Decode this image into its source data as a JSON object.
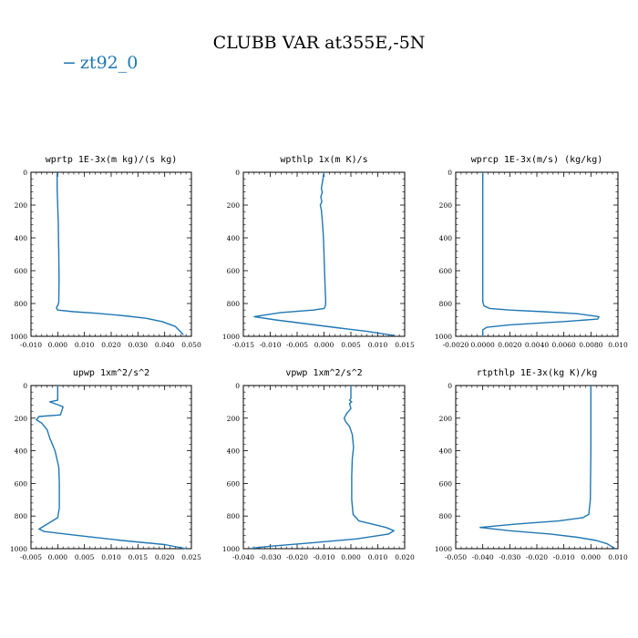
{
  "figure": {
    "title": "CLUBB VAR at355E,-5N",
    "legend": [
      {
        "label": "zt92_0",
        "marker": "−",
        "color": "#1f77b4"
      }
    ],
    "line_color": "#1f77b4"
  },
  "chart_data": [
    {
      "type": "line",
      "title": "wprtp  1E-3x(m kg)/(s kg)",
      "xlim": [
        -0.01,
        0.05
      ],
      "ylim": [
        1000,
        0
      ],
      "xticks": [
        -0.01,
        0.0,
        0.01,
        0.02,
        0.03,
        0.04,
        0.05
      ],
      "xtick_labels": [
        "-0.010",
        "0.000",
        "0.010",
        "0.020",
        "0.030",
        "0.040",
        "0.050"
      ],
      "yticks": [
        0,
        200,
        400,
        600,
        800,
        1000
      ],
      "ytick_labels": [
        "0",
        "200",
        "400",
        "600",
        "800",
        "1000"
      ],
      "series": [
        {
          "name": "zt92_0",
          "x": [
            -0.0002,
            -0.0002,
            0.0002,
            0.0004,
            0.0005,
            0.0004,
            0.0001,
            -0.0005,
            0.0,
            0.006,
            0.015,
            0.025,
            0.033,
            0.039,
            0.044,
            0.047
          ],
          "y": [
            0,
            100,
            300,
            500,
            650,
            790,
            810,
            825,
            840,
            850,
            860,
            875,
            890,
            910,
            940,
            990
          ]
        }
      ]
    },
    {
      "type": "line",
      "title": "wpthlp  1x(m K)/s",
      "xlim": [
        -0.015,
        0.015
      ],
      "ylim": [
        1000,
        0
      ],
      "xticks": [
        -0.015,
        -0.01,
        -0.005,
        0.0,
        0.005,
        0.01,
        0.015
      ],
      "xtick_labels": [
        "-0.015",
        "-0.010",
        "-0.005",
        "0.000",
        "0.005",
        "0.010",
        "0.015"
      ],
      "yticks": [
        0,
        200,
        400,
        600,
        800,
        1000
      ],
      "ytick_labels": [
        "0",
        "200",
        "400",
        "600",
        "800",
        "1000"
      ],
      "series": [
        {
          "name": "zt92_0",
          "x": [
            0.0,
            -0.0005,
            -0.0003,
            -0.0006,
            -0.0004,
            -0.0007,
            -0.0005,
            -0.0003,
            -0.0001,
            0.0,
            0.0001,
            0.0002,
            0.0003,
            0.0003,
            0.0002,
            0.0,
            -0.002,
            -0.008,
            -0.013,
            -0.009,
            -0.003,
            0.003,
            0.008,
            0.013
          ],
          "y": [
            0,
            100,
            120,
            150,
            180,
            200,
            230,
            300,
            400,
            500,
            600,
            700,
            780,
            800,
            820,
            830,
            840,
            855,
            880,
            900,
            925,
            950,
            970,
            995
          ]
        }
      ]
    },
    {
      "type": "line",
      "title": "wprcp  1E-3x(m/s) (kg/kg)",
      "xlim": [
        -0.002,
        0.01
      ],
      "ylim": [
        1000,
        0
      ],
      "xticks": [
        -0.002,
        0.0,
        0.002,
        0.004,
        0.006,
        0.008,
        0.01
      ],
      "xtick_labels": [
        "-0.0020",
        "0.0000",
        "0.0020",
        "0.0040",
        "0.0060",
        "0.0080",
        "0.010"
      ],
      "yticks": [
        0,
        200,
        400,
        600,
        800,
        1000
      ],
      "ytick_labels": [
        "0",
        "200",
        "400",
        "600",
        "800",
        "1000"
      ],
      "series": [
        {
          "name": "zt92_0",
          "x": [
            0.0,
            0.0,
            0.0,
            0.0,
            0.0001,
            0.0005,
            0.002,
            0.0045,
            0.007,
            0.0086,
            0.0085,
            0.006,
            0.002,
            0.0003,
            0.0,
            0.0
          ],
          "y": [
            0,
            200,
            500,
            790,
            815,
            830,
            840,
            850,
            862,
            880,
            895,
            910,
            930,
            945,
            960,
            1000
          ]
        }
      ]
    },
    {
      "type": "line",
      "title": "upwp  1xm^2/s^2",
      "xlim": [
        -0.005,
        0.025
      ],
      "ylim": [
        1000,
        0
      ],
      "xticks": [
        -0.005,
        0.0,
        0.005,
        0.01,
        0.015,
        0.02,
        0.025
      ],
      "xtick_labels": [
        "-0.005",
        "0.000",
        "0.005",
        "0.010",
        "0.015",
        "0.020",
        "0.025"
      ],
      "yticks": [
        0,
        200,
        400,
        600,
        800,
        1000
      ],
      "ytick_labels": [
        "0",
        "200",
        "400",
        "600",
        "800",
        "1000"
      ],
      "series": [
        {
          "name": "zt92_0",
          "x": [
            0.0,
            0.0,
            -0.0015,
            0.0002,
            0.001,
            0.0005,
            -0.0035,
            -0.004,
            -0.003,
            -0.002,
            -0.0015,
            -0.0005,
            0.0002,
            0.0003,
            0.0003,
            0.0,
            -0.002,
            -0.0035,
            -0.0025,
            0.004,
            0.012,
            0.02,
            0.024
          ],
          "y": [
            0,
            90,
            100,
            120,
            130,
            180,
            190,
            210,
            230,
            270,
            320,
            400,
            500,
            600,
            750,
            810,
            850,
            880,
            895,
            920,
            950,
            975,
            1000
          ]
        }
      ]
    },
    {
      "type": "line",
      "title": "vpwp  1xm^2/s^2",
      "xlim": [
        -0.04,
        0.02
      ],
      "ylim": [
        1000,
        0
      ],
      "xticks": [
        -0.04,
        -0.03,
        -0.02,
        -0.01,
        0.0,
        0.01,
        0.02
      ],
      "xtick_labels": [
        "-0.040",
        "-0.030",
        "-0.020",
        "-0.010",
        "0.000",
        "0.010",
        "0.020"
      ],
      "yticks": [
        0,
        200,
        400,
        600,
        800,
        1000
      ],
      "ytick_labels": [
        "0",
        "200",
        "400",
        "600",
        "800",
        "1000"
      ],
      "series": [
        {
          "name": "zt92_0",
          "x": [
            0.0,
            0.0,
            -0.0005,
            0.0003,
            -0.0005,
            0.0,
            -0.0005,
            -0.0015,
            -0.0025,
            -0.002,
            -0.0005,
            0.0005,
            0.001,
            0.0005,
            0.0003,
            0.0003,
            0.0008,
            0.003,
            0.008,
            0.013,
            0.016,
            0.014,
            0.002,
            -0.015,
            -0.03,
            -0.037
          ],
          "y": [
            0,
            80,
            90,
            100,
            110,
            140,
            150,
            170,
            200,
            220,
            250,
            300,
            380,
            450,
            550,
            700,
            790,
            830,
            850,
            870,
            890,
            910,
            940,
            965,
            985,
            998
          ]
        }
      ]
    },
    {
      "type": "line",
      "title": "rtpthlp  1E-3x(kg K)/kg",
      "xlim": [
        -0.05,
        0.01
      ],
      "ylim": [
        1000,
        0
      ],
      "xticks": [
        -0.05,
        -0.04,
        -0.03,
        -0.02,
        -0.01,
        0.0,
        0.01
      ],
      "xtick_labels": [
        "-0.050",
        "-0.040",
        "-0.030",
        "-0.020",
        "-0.010",
        "0.000",
        "0.010"
      ],
      "yticks": [
        0,
        200,
        400,
        600,
        800,
        1000
      ],
      "ytick_labels": [
        "0",
        "200",
        "400",
        "600",
        "800",
        "1000"
      ],
      "series": [
        {
          "name": "zt92_0",
          "x": [
            0.0,
            0.0,
            -0.0002,
            -0.0008,
            -0.003,
            -0.012,
            -0.028,
            -0.041,
            -0.03,
            -0.015,
            -0.005,
            0.002,
            0.006,
            0.008,
            0.009
          ],
          "y": [
            0,
            400,
            700,
            790,
            810,
            830,
            850,
            870,
            890,
            910,
            930,
            950,
            970,
            990,
            1000
          ]
        }
      ]
    }
  ]
}
